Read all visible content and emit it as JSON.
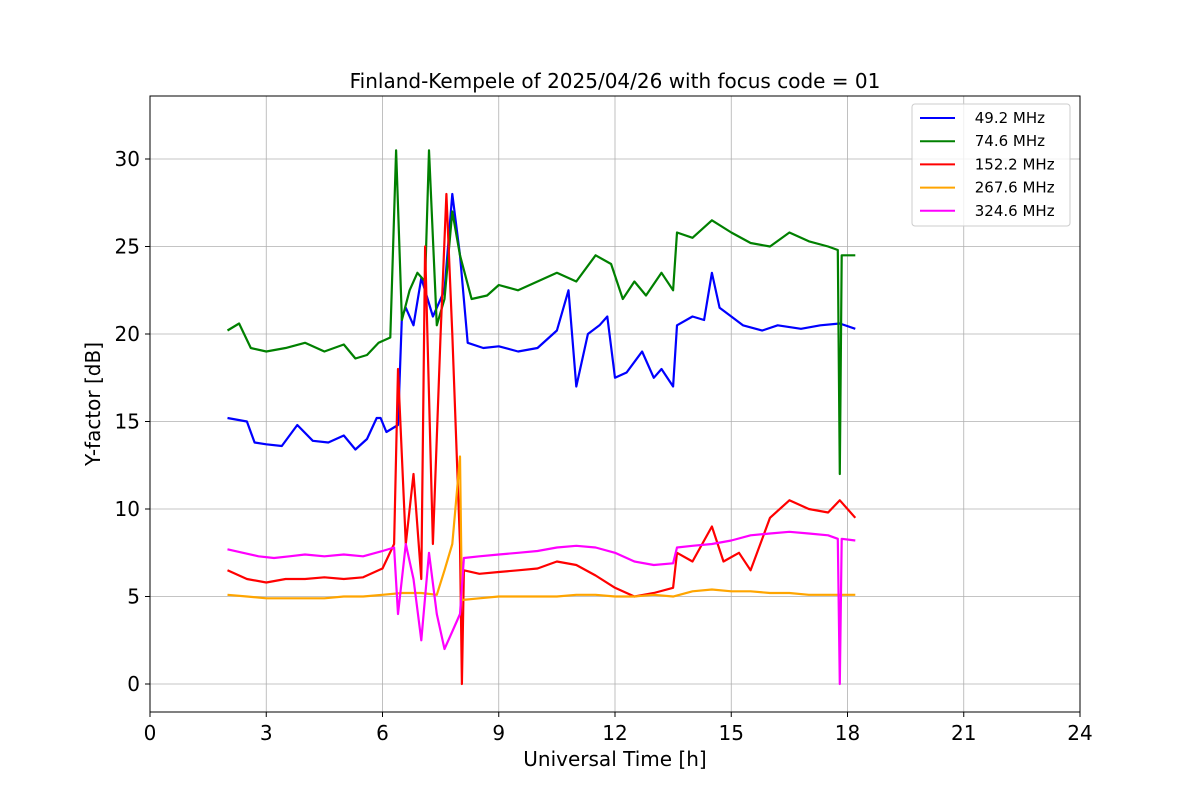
{
  "chart_data": {
    "type": "line",
    "title": "Finland-Kempele of 2025/04/26 with focus code = 01",
    "xlabel": "Universal Time [h]",
    "ylabel": "Y-factor [dB]",
    "xlim": [
      0,
      24
    ],
    "ylim": [
      -1.6,
      33.6
    ],
    "xticks": [
      0,
      3,
      6,
      9,
      12,
      15,
      18,
      21,
      24
    ],
    "yticks": [
      0,
      5,
      10,
      15,
      20,
      25,
      30
    ],
    "grid": true,
    "legend_position": "upper right",
    "series": [
      {
        "name": " 49.2 MHz",
        "color": "#0000ff",
        "points": [
          [
            2.0,
            15.2
          ],
          [
            2.5,
            15.0
          ],
          [
            2.7,
            13.8
          ],
          [
            3.0,
            13.7
          ],
          [
            3.4,
            13.6
          ],
          [
            3.8,
            14.8
          ],
          [
            4.2,
            13.9
          ],
          [
            4.6,
            13.8
          ],
          [
            5.0,
            14.2
          ],
          [
            5.3,
            13.4
          ],
          [
            5.6,
            14.0
          ],
          [
            5.85,
            15.2
          ],
          [
            5.95,
            15.2
          ],
          [
            6.1,
            14.4
          ],
          [
            6.4,
            14.8
          ],
          [
            6.5,
            21.0
          ],
          [
            6.6,
            21.5
          ],
          [
            6.8,
            20.5
          ],
          [
            7.0,
            23.2
          ],
          [
            7.3,
            21.0
          ],
          [
            7.6,
            22.5
          ],
          [
            7.8,
            28.0
          ],
          [
            8.0,
            24.5
          ],
          [
            8.2,
            19.5
          ],
          [
            8.6,
            19.2
          ],
          [
            9.0,
            19.3
          ],
          [
            9.5,
            19.0
          ],
          [
            10.0,
            19.2
          ],
          [
            10.5,
            20.2
          ],
          [
            10.8,
            22.5
          ],
          [
            11.0,
            17.0
          ],
          [
            11.3,
            20.0
          ],
          [
            11.6,
            20.5
          ],
          [
            11.8,
            21.0
          ],
          [
            12.0,
            17.5
          ],
          [
            12.3,
            17.8
          ],
          [
            12.7,
            19.0
          ],
          [
            13.0,
            17.5
          ],
          [
            13.2,
            18.0
          ],
          [
            13.5,
            17.0
          ],
          [
            13.6,
            20.5
          ],
          [
            14.0,
            21.0
          ],
          [
            14.3,
            20.8
          ],
          [
            14.5,
            23.5
          ],
          [
            14.7,
            21.5
          ],
          [
            15.0,
            21.0
          ],
          [
            15.3,
            20.5
          ],
          [
            15.8,
            20.2
          ],
          [
            16.2,
            20.5
          ],
          [
            16.8,
            20.3
          ],
          [
            17.3,
            20.5
          ],
          [
            17.8,
            20.6
          ],
          [
            18.2,
            20.3
          ]
        ]
      },
      {
        "name": " 74.6 MHz",
        "color": "#008000",
        "points": [
          [
            2.0,
            20.2
          ],
          [
            2.3,
            20.6
          ],
          [
            2.6,
            19.2
          ],
          [
            3.0,
            19.0
          ],
          [
            3.5,
            19.2
          ],
          [
            4.0,
            19.5
          ],
          [
            4.5,
            19.0
          ],
          [
            5.0,
            19.4
          ],
          [
            5.3,
            18.6
          ],
          [
            5.6,
            18.8
          ],
          [
            5.9,
            19.5
          ],
          [
            6.2,
            19.8
          ],
          [
            6.35,
            30.5
          ],
          [
            6.5,
            20.8
          ],
          [
            6.7,
            22.5
          ],
          [
            6.9,
            23.5
          ],
          [
            7.1,
            23.0
          ],
          [
            7.2,
            30.5
          ],
          [
            7.4,
            20.5
          ],
          [
            7.6,
            22.0
          ],
          [
            7.8,
            27.0
          ],
          [
            8.0,
            24.5
          ],
          [
            8.3,
            22.0
          ],
          [
            8.7,
            22.2
          ],
          [
            9.0,
            22.8
          ],
          [
            9.5,
            22.5
          ],
          [
            10.0,
            23.0
          ],
          [
            10.5,
            23.5
          ],
          [
            11.0,
            23.0
          ],
          [
            11.5,
            24.5
          ],
          [
            11.9,
            24.0
          ],
          [
            12.2,
            22.0
          ],
          [
            12.5,
            23.0
          ],
          [
            12.8,
            22.2
          ],
          [
            13.2,
            23.5
          ],
          [
            13.5,
            22.5
          ],
          [
            13.6,
            25.8
          ],
          [
            14.0,
            25.5
          ],
          [
            14.5,
            26.5
          ],
          [
            15.0,
            25.8
          ],
          [
            15.5,
            25.2
          ],
          [
            16.0,
            25.0
          ],
          [
            16.5,
            25.8
          ],
          [
            17.0,
            25.3
          ],
          [
            17.5,
            25.0
          ],
          [
            17.75,
            24.8
          ],
          [
            17.8,
            12.0
          ],
          [
            17.85,
            24.5
          ],
          [
            18.2,
            24.5
          ]
        ]
      },
      {
        "name": " 152.2 MHz",
        "color": "#ff0000",
        "points": [
          [
            2.0,
            6.5
          ],
          [
            2.5,
            6.0
          ],
          [
            3.0,
            5.8
          ],
          [
            3.5,
            6.0
          ],
          [
            4.0,
            6.0
          ],
          [
            4.5,
            6.1
          ],
          [
            5.0,
            6.0
          ],
          [
            5.5,
            6.1
          ],
          [
            6.0,
            6.6
          ],
          [
            6.3,
            8.0
          ],
          [
            6.4,
            18.0
          ],
          [
            6.6,
            8.0
          ],
          [
            6.8,
            12.0
          ],
          [
            7.0,
            6.0
          ],
          [
            7.1,
            25.0
          ],
          [
            7.3,
            8.0
          ],
          [
            7.5,
            20.0
          ],
          [
            7.65,
            28.0
          ],
          [
            7.8,
            20.0
          ],
          [
            8.0,
            8.0
          ],
          [
            8.05,
            0.0
          ],
          [
            8.1,
            6.5
          ],
          [
            8.5,
            6.3
          ],
          [
            9.0,
            6.4
          ],
          [
            9.5,
            6.5
          ],
          [
            10.0,
            6.6
          ],
          [
            10.5,
            7.0
          ],
          [
            11.0,
            6.8
          ],
          [
            11.5,
            6.2
          ],
          [
            12.0,
            5.5
          ],
          [
            12.5,
            5.0
          ],
          [
            13.0,
            5.2
          ],
          [
            13.5,
            5.5
          ],
          [
            13.6,
            7.5
          ],
          [
            14.0,
            7.0
          ],
          [
            14.5,
            9.0
          ],
          [
            14.8,
            7.0
          ],
          [
            15.2,
            7.5
          ],
          [
            15.5,
            6.5
          ],
          [
            16.0,
            9.5
          ],
          [
            16.5,
            10.5
          ],
          [
            17.0,
            10.0
          ],
          [
            17.5,
            9.8
          ],
          [
            17.8,
            10.5
          ],
          [
            18.2,
            9.5
          ]
        ]
      },
      {
        "name": " 267.6 MHz",
        "color": "#ffa500",
        "points": [
          [
            2.0,
            5.1
          ],
          [
            2.5,
            5.0
          ],
          [
            3.0,
            4.9
          ],
          [
            3.5,
            4.9
          ],
          [
            4.0,
            4.9
          ],
          [
            4.5,
            4.9
          ],
          [
            5.0,
            5.0
          ],
          [
            5.5,
            5.0
          ],
          [
            6.0,
            5.1
          ],
          [
            6.5,
            5.2
          ],
          [
            7.0,
            5.2
          ],
          [
            7.4,
            5.1
          ],
          [
            7.6,
            6.5
          ],
          [
            7.8,
            8.0
          ],
          [
            8.0,
            13.0
          ],
          [
            8.05,
            4.8
          ],
          [
            8.5,
            4.9
          ],
          [
            9.0,
            5.0
          ],
          [
            9.5,
            5.0
          ],
          [
            10.0,
            5.0
          ],
          [
            10.5,
            5.0
          ],
          [
            11.0,
            5.1
          ],
          [
            11.5,
            5.1
          ],
          [
            12.0,
            5.0
          ],
          [
            12.5,
            5.0
          ],
          [
            13.0,
            5.1
          ],
          [
            13.5,
            5.0
          ],
          [
            14.0,
            5.3
          ],
          [
            14.5,
            5.4
          ],
          [
            15.0,
            5.3
          ],
          [
            15.5,
            5.3
          ],
          [
            16.0,
            5.2
          ],
          [
            16.5,
            5.2
          ],
          [
            17.0,
            5.1
          ],
          [
            17.5,
            5.1
          ],
          [
            18.2,
            5.1
          ]
        ]
      },
      {
        "name": " 324.6 MHz",
        "color": "#ff00ff",
        "points": [
          [
            2.0,
            7.7
          ],
          [
            2.4,
            7.5
          ],
          [
            2.8,
            7.3
          ],
          [
            3.2,
            7.2
          ],
          [
            3.6,
            7.3
          ],
          [
            4.0,
            7.4
          ],
          [
            4.5,
            7.3
          ],
          [
            5.0,
            7.4
          ],
          [
            5.5,
            7.3
          ],
          [
            6.0,
            7.6
          ],
          [
            6.3,
            7.8
          ],
          [
            6.4,
            4.0
          ],
          [
            6.6,
            8.0
          ],
          [
            6.8,
            6.0
          ],
          [
            7.0,
            2.5
          ],
          [
            7.2,
            7.5
          ],
          [
            7.4,
            4.0
          ],
          [
            7.6,
            2.0
          ],
          [
            7.8,
            3.0
          ],
          [
            8.0,
            4.0
          ],
          [
            8.1,
            7.2
          ],
          [
            8.5,
            7.3
          ],
          [
            9.0,
            7.4
          ],
          [
            9.5,
            7.5
          ],
          [
            10.0,
            7.6
          ],
          [
            10.5,
            7.8
          ],
          [
            11.0,
            7.9
          ],
          [
            11.5,
            7.8
          ],
          [
            12.0,
            7.5
          ],
          [
            12.5,
            7.0
          ],
          [
            13.0,
            6.8
          ],
          [
            13.5,
            6.9
          ],
          [
            13.6,
            7.8
          ],
          [
            14.0,
            7.9
          ],
          [
            14.5,
            8.0
          ],
          [
            15.0,
            8.2
          ],
          [
            15.5,
            8.5
          ],
          [
            16.0,
            8.6
          ],
          [
            16.5,
            8.7
          ],
          [
            17.0,
            8.6
          ],
          [
            17.5,
            8.5
          ],
          [
            17.75,
            8.3
          ],
          [
            17.8,
            0.0
          ],
          [
            17.85,
            8.3
          ],
          [
            18.2,
            8.2
          ]
        ]
      }
    ]
  }
}
